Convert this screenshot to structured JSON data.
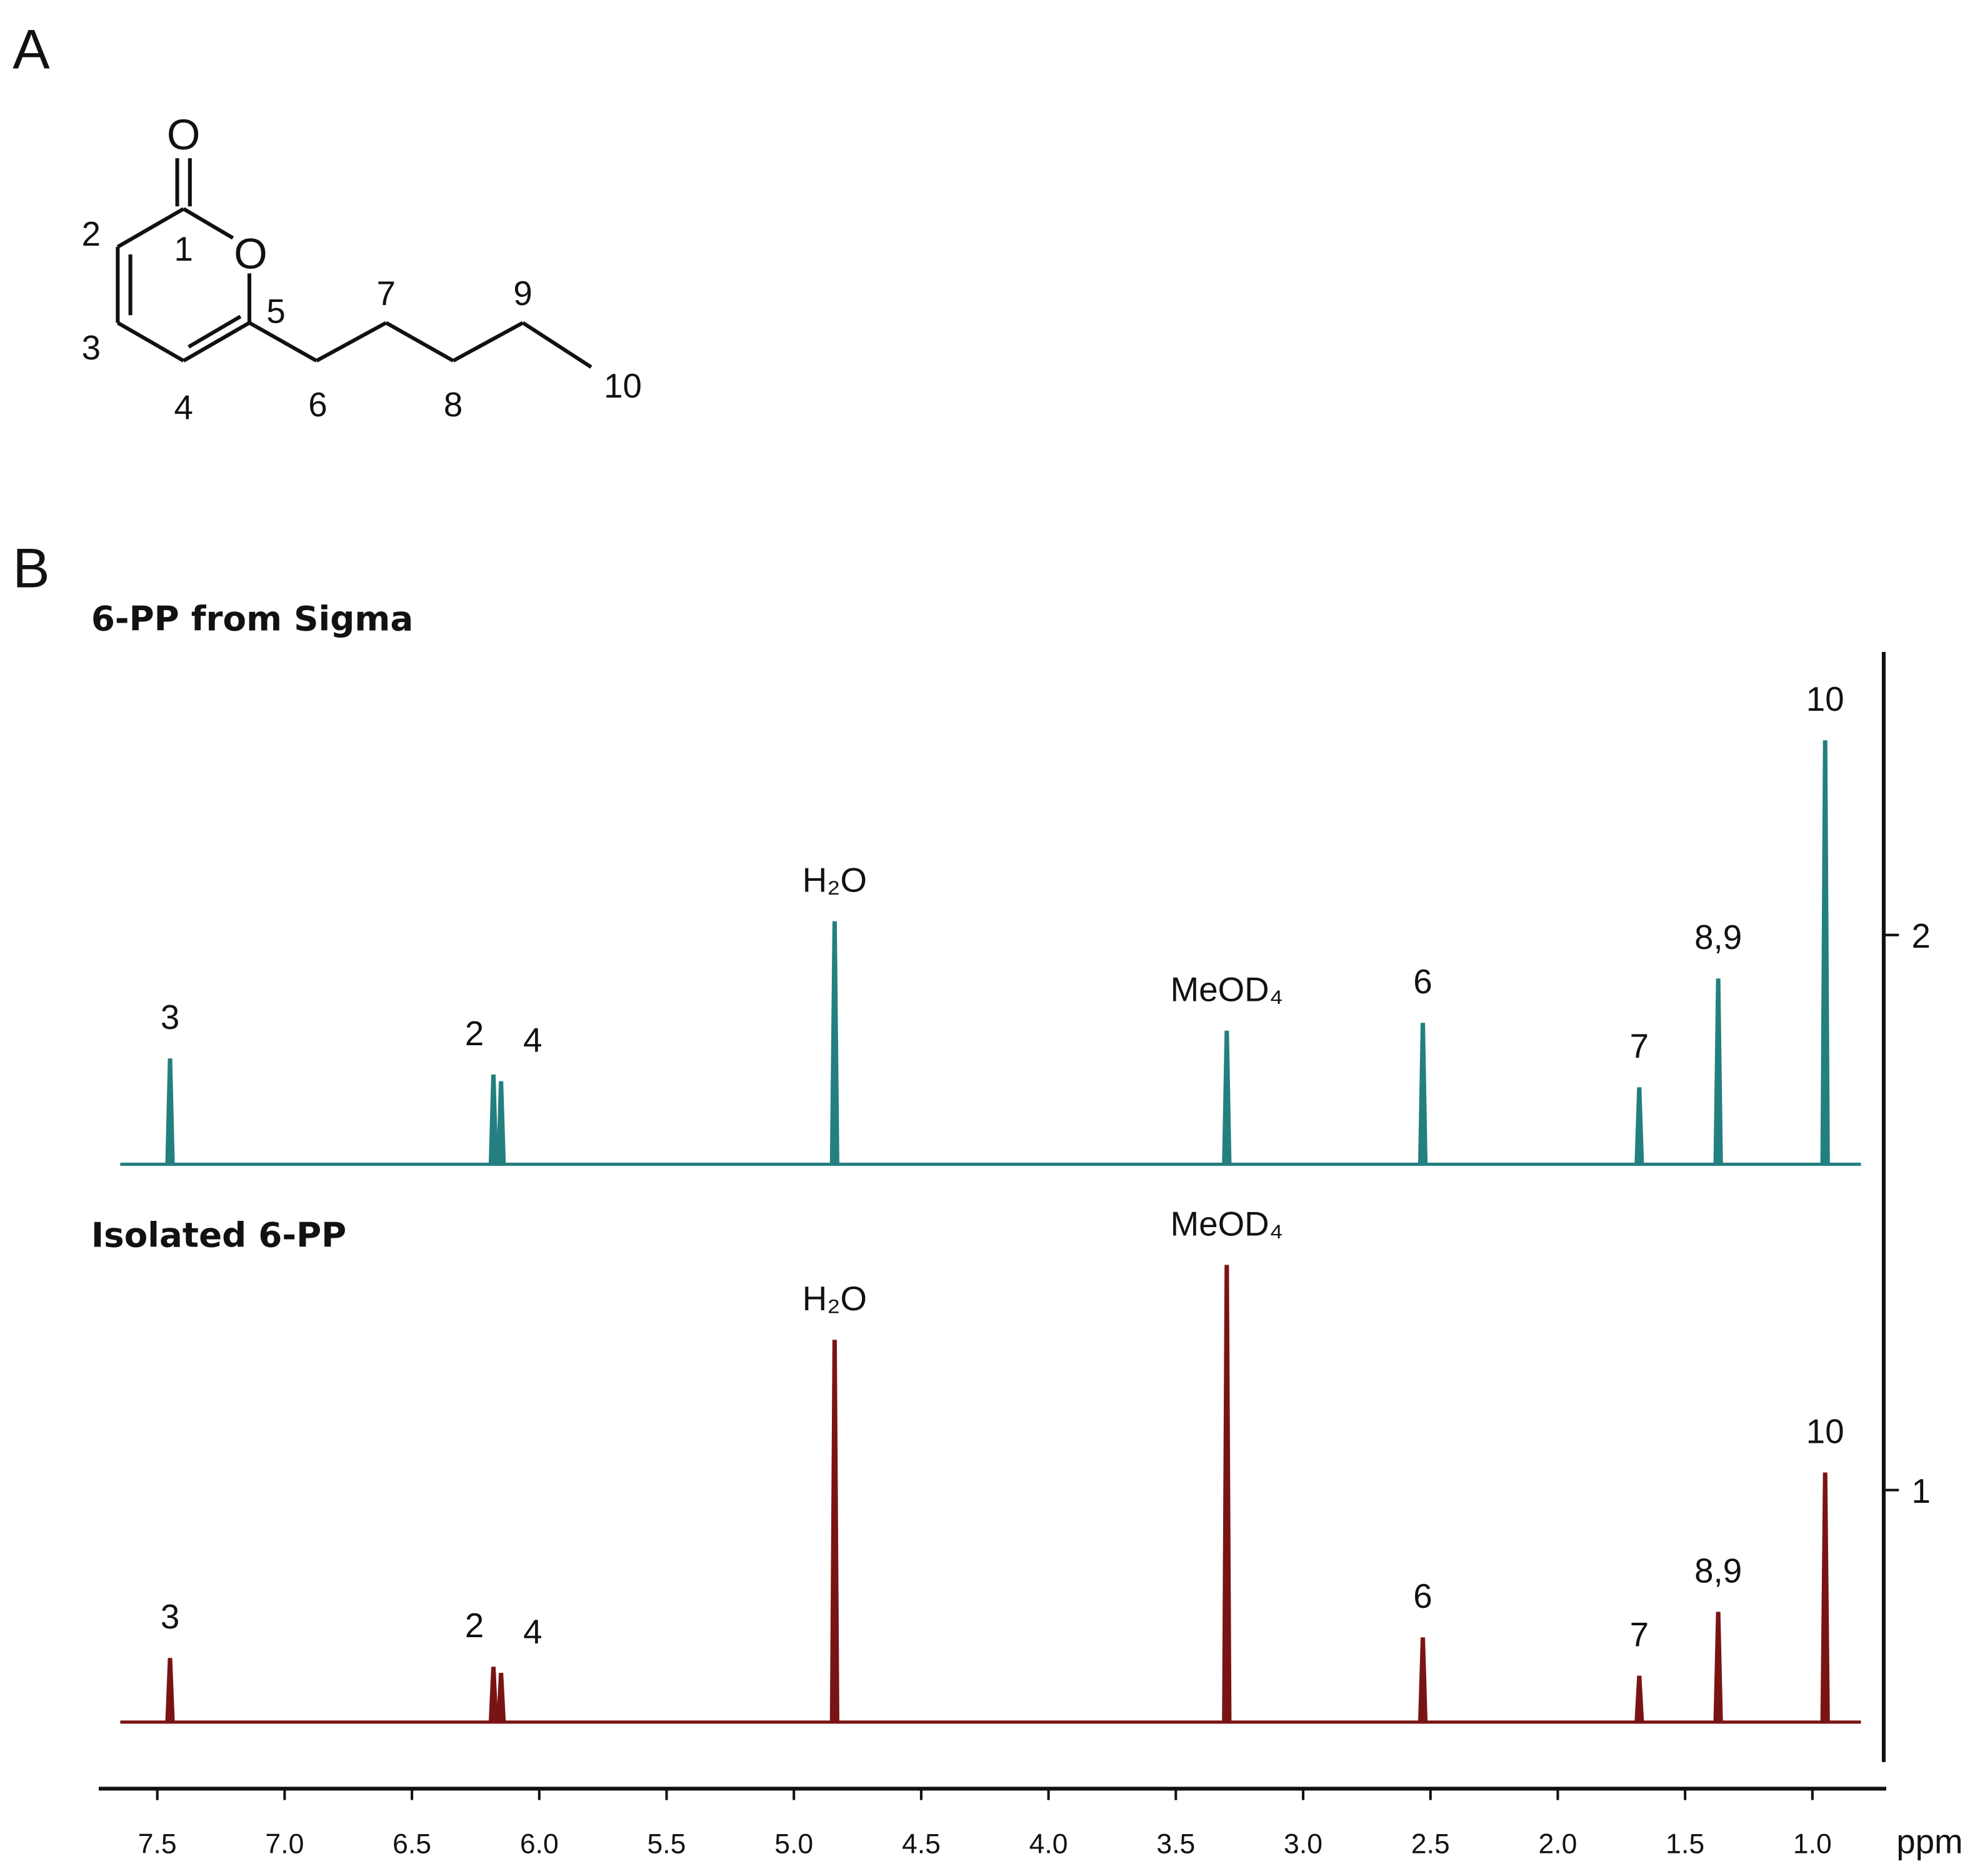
{
  "panel_labels": [
    "A",
    "B"
  ],
  "molecule": {
    "atoms": [
      "O",
      "O"
    ],
    "numbers": [
      "1",
      "2",
      "3",
      "4",
      "5",
      "6",
      "7",
      "8",
      "9",
      "10"
    ]
  },
  "chart_data": {
    "type": "spectrum",
    "x_label": "ppm",
    "xlim": [
      7.73,
      0.71
    ],
    "xticks": [
      7.5,
      {
        "value": 7,
        "label": "7.0"
      },
      6.5,
      {
        "value": 6,
        "label": "6.0"
      },
      5.5,
      {
        "value": 5,
        "label": "5.0"
      },
      4.5,
      {
        "value": 4,
        "label": "4.0"
      },
      3.5,
      {
        "value": 3,
        "label": "3.0"
      },
      2.5,
      {
        "value": 2,
        "label": "2.0"
      },
      1.5,
      {
        "value": 1,
        "label": "1.0"
      }
    ],
    "ylim": [
      0.51,
      2.51
    ],
    "yticks": [
      1,
      2
    ],
    "series": [
      {
        "name": "6-PP from Sigma",
        "color": "#23807f",
        "baseline": 1.587,
        "x": [
          7.45,
          6.18,
          6.15,
          4.84,
          3.3,
          2.53,
          1.68,
          1.37,
          0.95
        ],
        "values": [
          1.776,
          1.747,
          1.735,
          2.023,
          1.826,
          1.84,
          1.724,
          1.92,
          2.349
        ],
        "peak_labels": [
          "3",
          "2",
          "4",
          "H₂O",
          "MeOD₄",
          "6",
          "7",
          "8,9",
          "10"
        ]
      },
      {
        "name": "Isolated 6-PP",
        "color": "#7a1414",
        "baseline": 0.582,
        "x": [
          7.45,
          6.18,
          6.15,
          4.84,
          3.3,
          2.53,
          1.68,
          1.37,
          0.95
        ],
        "values": [
          0.696,
          0.68,
          0.669,
          1.269,
          1.404,
          0.733,
          0.664,
          0.779,
          1.03
        ],
        "peak_labels": [
          "3",
          "2",
          "4",
          "H₂O",
          "MeOD₄",
          "6",
          "7",
          "8,9",
          "10"
        ]
      }
    ]
  }
}
